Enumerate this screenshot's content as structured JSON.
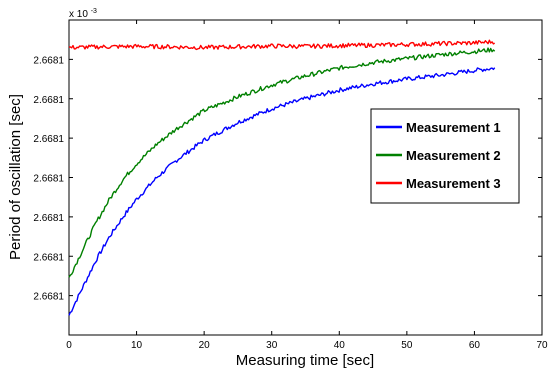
{
  "chart_data": {
    "type": "line",
    "title": "",
    "xlabel": "Measuring time [sec]",
    "ylabel": "Period of oscillation [sec]",
    "y_multiplier_base": "x 10",
    "y_multiplier_exp": "-3",
    "xlim": [
      0,
      70
    ],
    "ylim": [
      0,
      8
    ],
    "x_ticks": [
      0,
      10,
      20,
      30,
      40,
      50,
      60,
      70
    ],
    "y_ticks": [
      1,
      2,
      3,
      4,
      5,
      6,
      7
    ],
    "y_tick_labels": [
      "2.6681",
      "2.6681",
      "2.6681",
      "2.6681",
      "2.6681",
      "2.6681",
      "2.6681"
    ],
    "grid": false,
    "legend_position": "right",
    "series": [
      {
        "name": "Measurement 1",
        "color": "#0000ff",
        "x": [
          0,
          2,
          4,
          6,
          8,
          10,
          13,
          16,
          20,
          25,
          30,
          35,
          40,
          45,
          50,
          55,
          60,
          63
        ],
        "y": [
          0.5,
          1.2,
          1.9,
          2.5,
          3.0,
          3.45,
          4.0,
          4.45,
          4.95,
          5.4,
          5.75,
          6.0,
          6.22,
          6.38,
          6.5,
          6.6,
          6.72,
          6.78
        ]
      },
      {
        "name": "Measurement 2",
        "color": "#008000",
        "x": [
          0,
          2,
          4,
          6,
          8,
          10,
          13,
          16,
          20,
          25,
          30,
          35,
          40,
          45,
          50,
          55,
          60,
          63
        ],
        "y": [
          1.45,
          2.15,
          2.85,
          3.45,
          3.95,
          4.35,
          4.85,
          5.25,
          5.7,
          6.05,
          6.35,
          6.58,
          6.78,
          6.92,
          7.02,
          7.12,
          7.2,
          7.25
        ]
      },
      {
        "name": "Measurement 3",
        "color": "#ff0000",
        "x": [
          0,
          5,
          10,
          15,
          20,
          25,
          30,
          35,
          40,
          45,
          50,
          55,
          60,
          63
        ],
        "y": [
          7.3,
          7.32,
          7.33,
          7.32,
          7.3,
          7.32,
          7.34,
          7.33,
          7.35,
          7.36,
          7.38,
          7.4,
          7.42,
          7.45
        ]
      }
    ]
  }
}
